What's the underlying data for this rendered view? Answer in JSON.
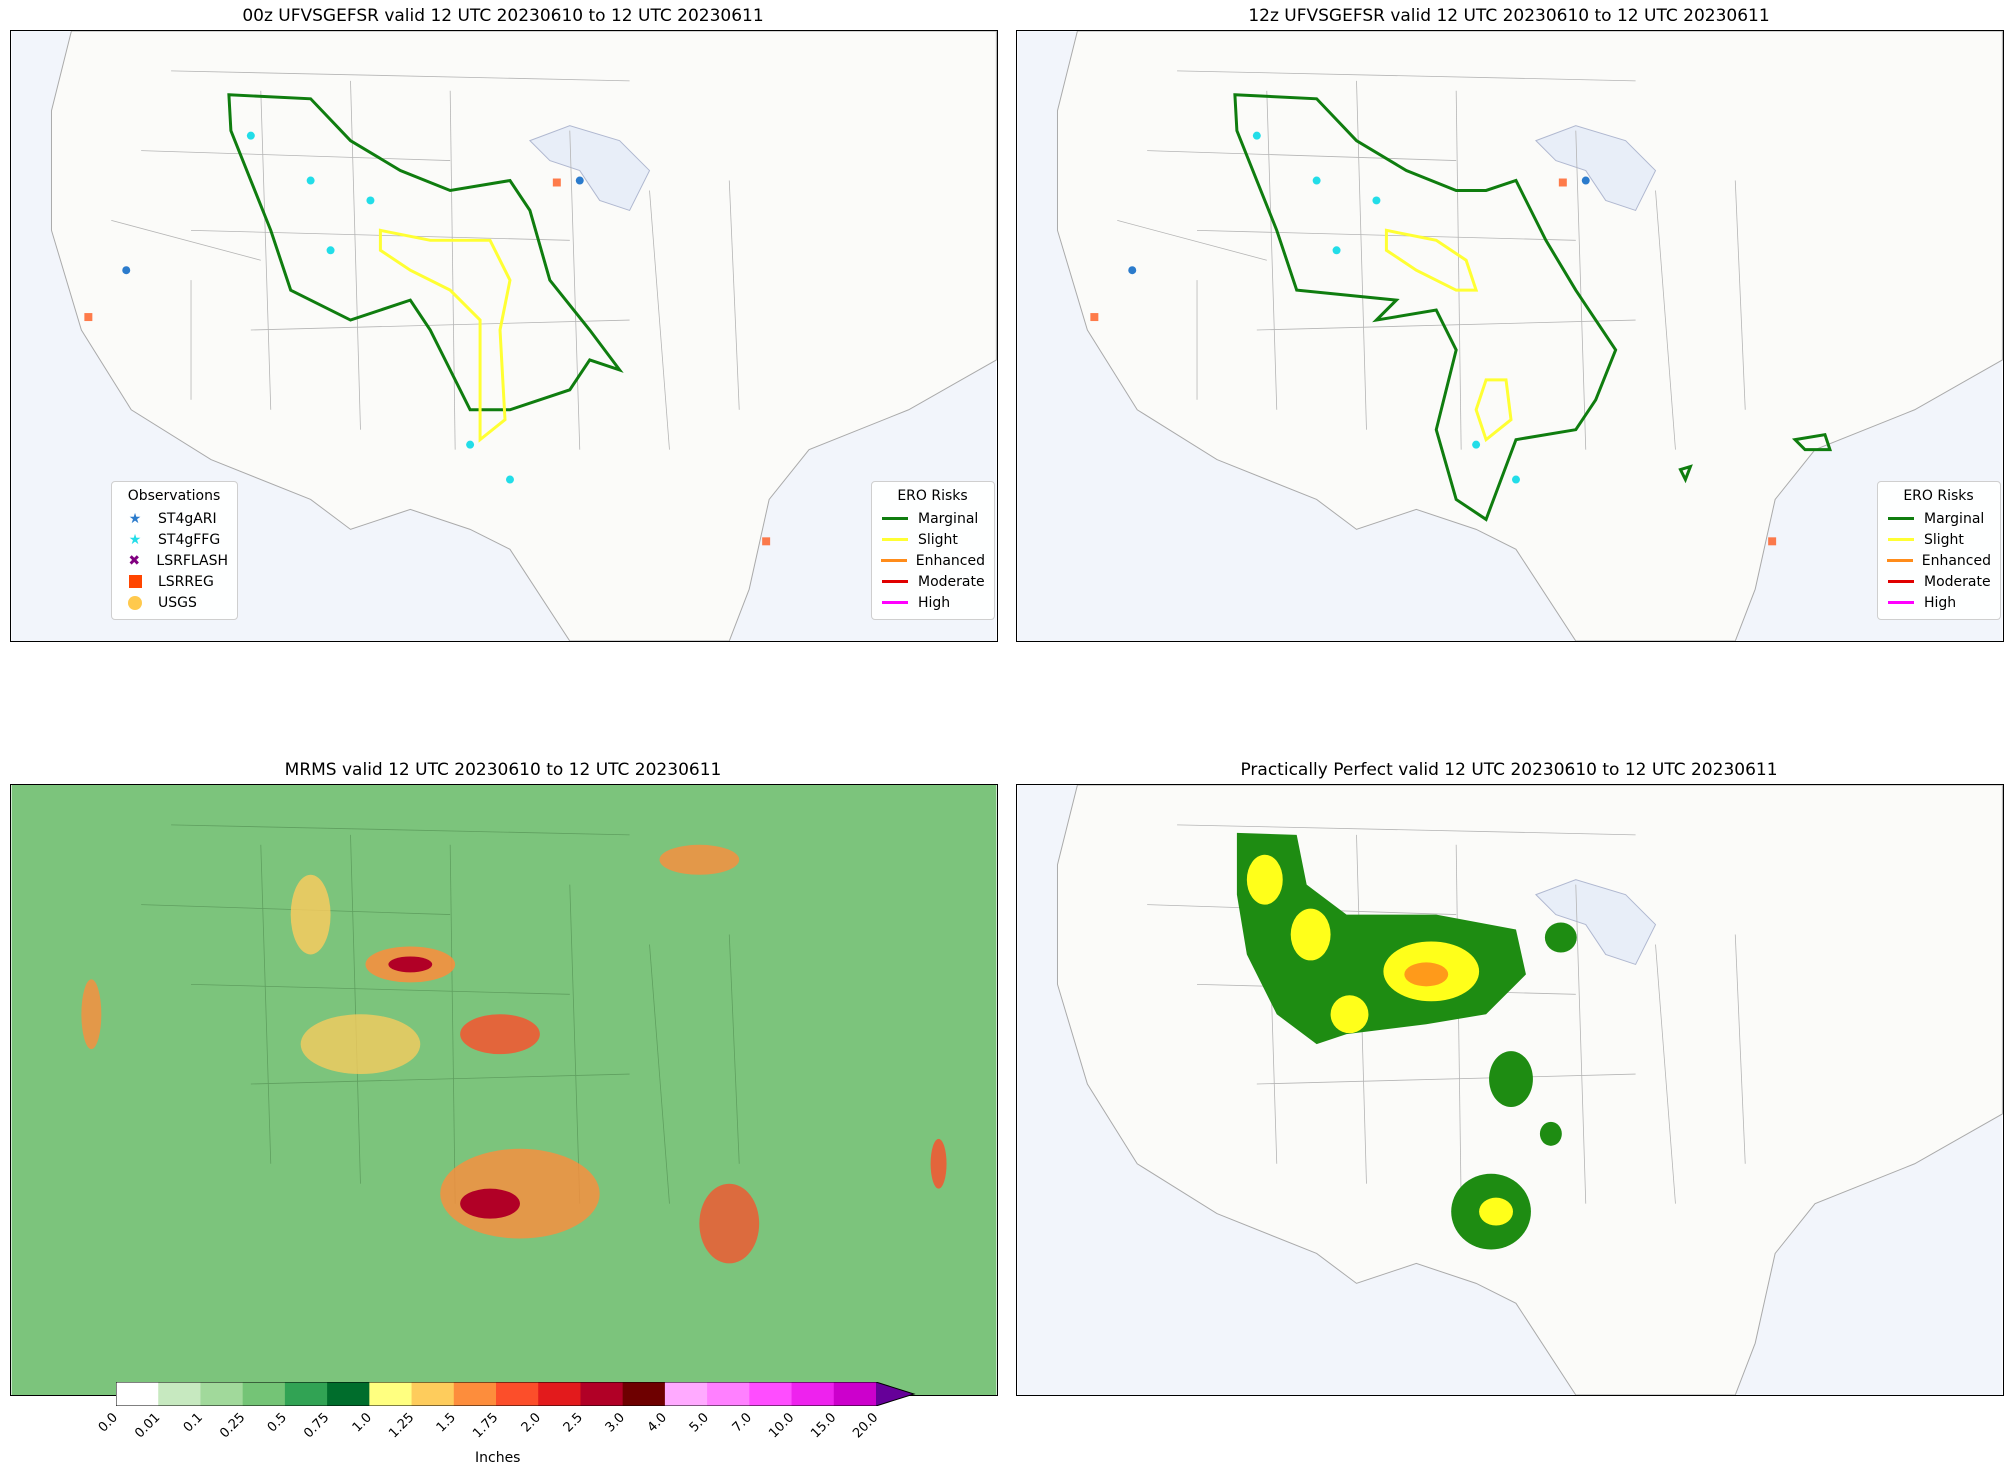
{
  "panels": [
    {
      "title": "00z UFVSGEFSR valid 12 UTC 20230610 to 12 UTC 20230611"
    },
    {
      "title": "12z UFVSGEFSR valid 12 UTC 20230610 to 12 UTC 20230611"
    },
    {
      "title": "MRMS valid 12 UTC 20230610 to 12 UTC 20230611"
    },
    {
      "title": "Practically Perfect valid 12 UTC 20230610 to 12 UTC 20230611"
    }
  ],
  "observations_legend": {
    "title": "Observations",
    "items": [
      {
        "label": "ST4gARI",
        "color": "#2b7bcc",
        "icon": "star-icon"
      },
      {
        "label": "ST4gFFG",
        "color": "#22dde8",
        "icon": "star-icon"
      },
      {
        "label": "LSRFLASH",
        "color": "#800080",
        "icon": "x-icon"
      },
      {
        "label": "LSRREG",
        "color": "#ff4500",
        "icon": "square-icon"
      },
      {
        "label": "USGS",
        "color": "#ffc94d",
        "icon": "circle-icon"
      }
    ]
  },
  "ero_legend": {
    "title": "ERO Risks",
    "items": [
      {
        "label": "Marginal",
        "color": "#0f7d0f"
      },
      {
        "label": "Slight",
        "color": "#ffff33"
      },
      {
        "label": "Enhanced",
        "color": "#ff8c1a"
      },
      {
        "label": "Moderate",
        "color": "#e00000"
      },
      {
        "label": "High",
        "color": "#ff00ff"
      }
    ]
  },
  "colorbar": {
    "label": "Inches",
    "ticks": [
      "0.0",
      "0.01",
      "0.1",
      "0.25",
      "0.5",
      "0.75",
      "1.0",
      "1.25",
      "1.5",
      "1.75",
      "2.0",
      "2.5",
      "3.0",
      "4.0",
      "5.0",
      "7.0",
      "10.0",
      "15.0",
      "20.0"
    ],
    "colors": [
      "#ffffff",
      "#c7e9c0",
      "#a1d99b",
      "#74c476",
      "#31a354",
      "#006d2c",
      "#ffff80",
      "#fecc5c",
      "#fd8d3c",
      "#fc4e2a",
      "#e31a1c",
      "#b10026",
      "#6e0000",
      "#ffaaff",
      "#ff80ff",
      "#ff4dff",
      "#ee22ee",
      "#cc00cc",
      "#9900cc"
    ],
    "extend_color": "#660099"
  },
  "map_colors": {
    "land": "#fbfbf9",
    "ocean": "#f2f5fb",
    "border": "#9a9a9a",
    "mrms_background": "#7cc47c"
  }
}
